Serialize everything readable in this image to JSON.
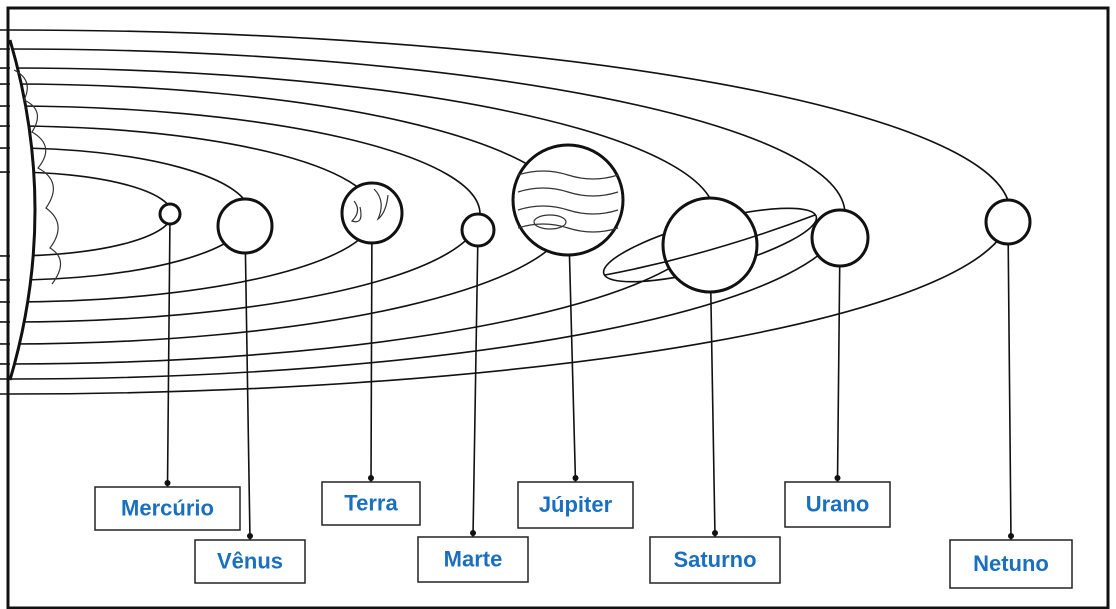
{
  "planets": [
    {
      "label": "Mercúrio"
    },
    {
      "label": "Vênus"
    },
    {
      "label": "Terra"
    },
    {
      "label": "Marte"
    },
    {
      "label": "Júpiter"
    },
    {
      "label": "Saturno"
    },
    {
      "label": "Urano"
    },
    {
      "label": "Netuno"
    }
  ]
}
